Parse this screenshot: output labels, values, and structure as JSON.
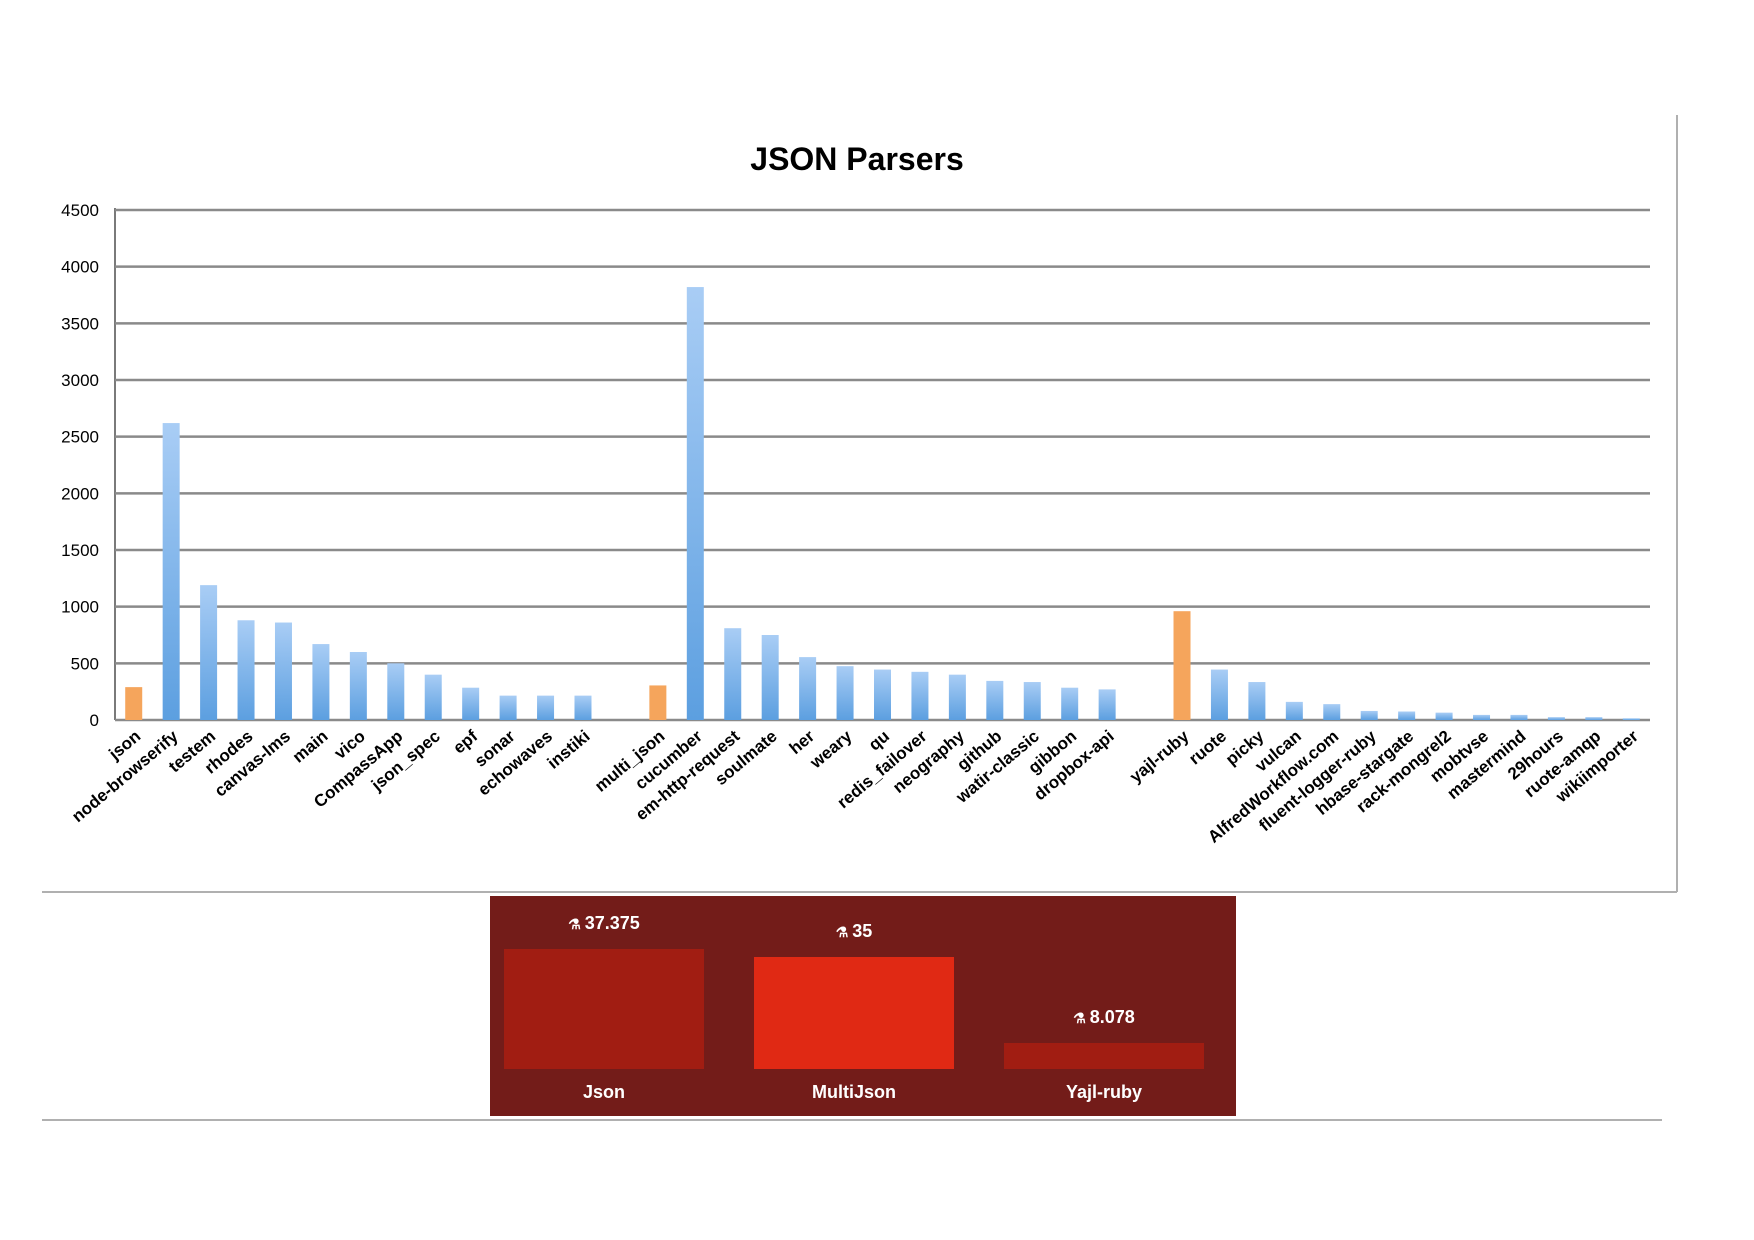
{
  "chart_data": [
    {
      "type": "bar",
      "title": "JSON Parsers",
      "xlabel": "",
      "ylabel": "",
      "ylim": [
        0,
        4500
      ],
      "yticks": [
        0,
        500,
        1000,
        1500,
        2000,
        2500,
        3000,
        3500,
        4000,
        4500
      ],
      "grid": true,
      "legend": "none",
      "colors": {
        "highlight": "#f5a55c",
        "normal": "#5c9fe0",
        "normal_light": "#a9cdf5"
      },
      "categories": [
        "json",
        "node-browserify",
        "testem",
        "rhodes",
        "canvas-lms",
        "main",
        "vico",
        "CompassApp",
        "json_spec",
        "epf",
        "sonar",
        "echowaves",
        "instiki",
        "",
        "multi_json",
        "cucumber",
        "em-http-request",
        "soulmate",
        "her",
        "weary",
        "qu",
        "redis_failover",
        "neography",
        "github",
        "watir-classic",
        "gibbon",
        "dropbox-api",
        "",
        "yajl-ruby",
        "ruote",
        "picky",
        "vulcan",
        "AlfredWorkflow.com",
        "fluent-logger-ruby",
        "hbase-stargate",
        "rack-mongrel2",
        "mobtvse",
        "mastermind",
        "29hours",
        "ruote-amqp",
        "wikiimporter"
      ],
      "values": [
        290,
        2620,
        1190,
        880,
        860,
        670,
        600,
        500,
        400,
        285,
        215,
        215,
        215,
        null,
        305,
        3820,
        810,
        750,
        555,
        475,
        445,
        425,
        400,
        345,
        335,
        285,
        270,
        null,
        960,
        445,
        335,
        160,
        140,
        80,
        75,
        65,
        45,
        45,
        25,
        25,
        15
      ],
      "highlight": [
        "json",
        "multi_json",
        "yajl-ruby"
      ]
    },
    {
      "type": "bar",
      "categories": [
        "Json",
        "MultiJson",
        "Yajl-ruby"
      ],
      "values": [
        37.375,
        35,
        8.078
      ],
      "value_labels": [
        "37.375",
        "35",
        "8.078"
      ],
      "colors": [
        "#a11d12",
        "#e02914",
        "#a11d12"
      ],
      "background": "#731c19"
    }
  ]
}
